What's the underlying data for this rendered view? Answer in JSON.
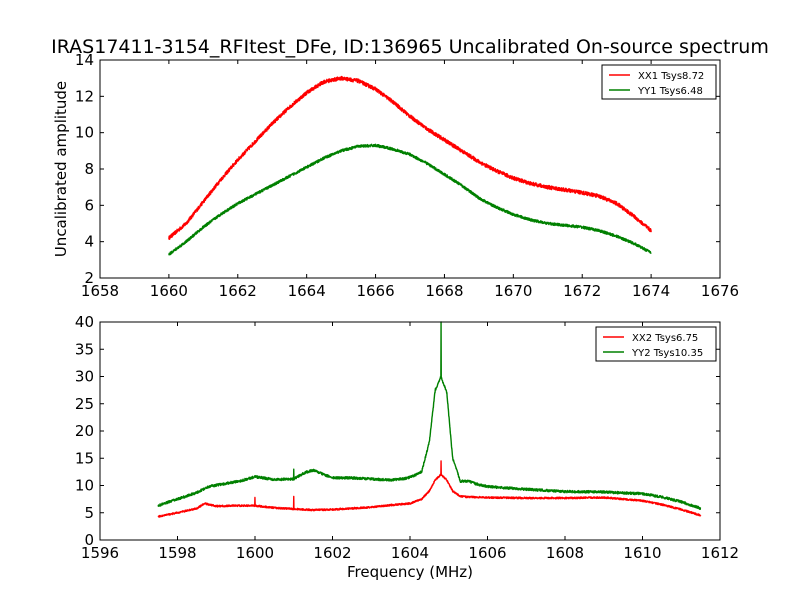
{
  "chart_data": [
    {
      "type": "line",
      "title": "IRAS17411-3154_RFItest_DFe, ID:136965 Uncalibrated On-source spectrum",
      "xlabel": "",
      "ylabel": "Uncalibrated amplitude",
      "xlim": [
        1658,
        1676
      ],
      "ylim": [
        2,
        14
      ],
      "xticks": [
        "1658",
        "1660",
        "1662",
        "1664",
        "1666",
        "1668",
        "1670",
        "1672",
        "1674",
        "1676"
      ],
      "yticks": [
        "2",
        "4",
        "6",
        "8",
        "10",
        "12",
        "14"
      ],
      "legend_position": "top-right",
      "series": [
        {
          "name": "XX1 Tsys8.72",
          "color": "#ff0000",
          "noise": 0.1,
          "x": [
            1660,
            1660.5,
            1661,
            1661.5,
            1662,
            1662.5,
            1663,
            1663.5,
            1664,
            1664.5,
            1665,
            1665.5,
            1666,
            1666.5,
            1667,
            1667.5,
            1668,
            1668.5,
            1669,
            1669.5,
            1670,
            1670.5,
            1671,
            1671.5,
            1672,
            1672.5,
            1673,
            1673.5,
            1674
          ],
          "y": [
            4.2,
            5.0,
            6.2,
            7.4,
            8.5,
            9.5,
            10.5,
            11.4,
            12.2,
            12.8,
            13.0,
            12.85,
            12.4,
            11.7,
            10.9,
            10.2,
            9.6,
            9.0,
            8.4,
            7.9,
            7.5,
            7.2,
            7.0,
            6.85,
            6.7,
            6.5,
            6.1,
            5.4,
            4.6
          ]
        },
        {
          "name": "YY1 Tsys6.48",
          "color": "#008000",
          "noise": 0.07,
          "x": [
            1660,
            1660.5,
            1661,
            1661.5,
            1662,
            1662.5,
            1663,
            1663.5,
            1664,
            1664.5,
            1665,
            1665.5,
            1666,
            1666.5,
            1667,
            1667.5,
            1668,
            1668.5,
            1669,
            1669.5,
            1670,
            1670.5,
            1671,
            1671.5,
            1672,
            1672.5,
            1673,
            1673.5,
            1674
          ],
          "y": [
            3.3,
            4.0,
            4.8,
            5.5,
            6.1,
            6.6,
            7.1,
            7.6,
            8.1,
            8.6,
            9.0,
            9.25,
            9.3,
            9.1,
            8.8,
            8.3,
            7.7,
            7.1,
            6.4,
            5.9,
            5.5,
            5.2,
            5.0,
            4.9,
            4.8,
            4.6,
            4.3,
            3.9,
            3.4
          ]
        }
      ]
    },
    {
      "type": "line",
      "title": "",
      "xlabel": "Frequency (MHz)",
      "ylabel": "",
      "xlim": [
        1596,
        1612
      ],
      "ylim": [
        0,
        40
      ],
      "xticks": [
        "1596",
        "1598",
        "1600",
        "1602",
        "1604",
        "1606",
        "1608",
        "1610",
        "1612"
      ],
      "yticks": [
        "0",
        "5",
        "10",
        "15",
        "20",
        "25",
        "30",
        "35",
        "40"
      ],
      "legend_position": "top-right",
      "series": [
        {
          "name": "XX2 Tsys6.75",
          "color": "#ff0000",
          "noise": 0.15,
          "x": [
            1597.5,
            1598.0,
            1598.5,
            1598.7,
            1599.0,
            1599.5,
            1600.0,
            1600.5,
            1601.0,
            1601.5,
            1602.0,
            1602.5,
            1603.0,
            1603.5,
            1604.0,
            1604.3,
            1604.5,
            1604.65,
            1604.8,
            1604.95,
            1605.1,
            1605.3,
            1605.5,
            1606.0,
            1607.0,
            1608.0,
            1609.0,
            1610.0,
            1610.5,
            1611.0,
            1611.5
          ],
          "y": [
            4.3,
            5.0,
            5.8,
            6.7,
            6.2,
            6.3,
            6.3,
            5.9,
            5.7,
            5.5,
            5.6,
            5.8,
            6.0,
            6.4,
            6.7,
            7.5,
            9.0,
            11.0,
            12.0,
            11.0,
            9.0,
            8.0,
            7.9,
            7.8,
            7.7,
            7.7,
            7.8,
            7.2,
            6.5,
            5.6,
            4.5
          ],
          "spikes": [
            [
              1600.0,
              7.8
            ],
            [
              1601.0,
              8.0
            ],
            [
              1604.8,
              14.5
            ]
          ]
        },
        {
          "name": "YY2 Tsys10.35",
          "color": "#008000",
          "noise": 0.22,
          "x": [
            1597.5,
            1598.0,
            1598.5,
            1598.8,
            1599.2,
            1599.6,
            1600.0,
            1600.5,
            1601.0,
            1601.3,
            1601.5,
            1602.0,
            1602.5,
            1603.0,
            1603.5,
            1603.9,
            1604.1,
            1604.3,
            1604.5,
            1604.65,
            1604.8,
            1604.95,
            1605.1,
            1605.3,
            1605.5,
            1605.7,
            1606.0,
            1607.0,
            1608.0,
            1609.0,
            1610.0,
            1610.5,
            1611.0,
            1611.5
          ],
          "y": [
            6.3,
            7.5,
            8.7,
            9.8,
            10.3,
            10.8,
            11.6,
            11.1,
            11.2,
            12.4,
            12.8,
            11.4,
            11.4,
            11.2,
            11.0,
            11.3,
            11.8,
            12.5,
            18.0,
            27.5,
            30.0,
            27.0,
            15.0,
            10.8,
            10.8,
            10.3,
            9.8,
            9.3,
            8.9,
            8.8,
            8.5,
            7.9,
            7.0,
            5.8
          ],
          "spikes": [
            [
              1601.0,
              13.0
            ],
            [
              1604.8,
              40.0
            ]
          ]
        }
      ]
    }
  ]
}
